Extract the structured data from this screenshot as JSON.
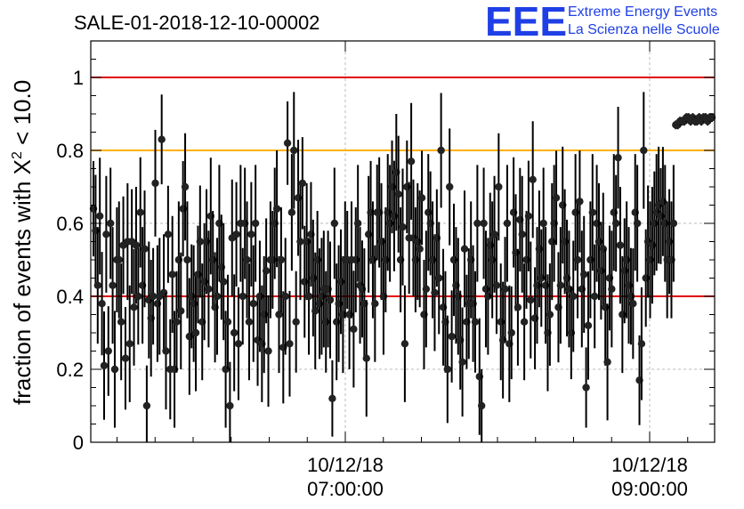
{
  "chart_data": {
    "type": "scatter",
    "title": "SALE-01-2018-12-10-00002",
    "ylabel": "fraction of events with X^2 < 10.0",
    "ylabel_parts": {
      "base": "fraction of events with X",
      "exp": "2",
      "tail": " < 10.0"
    },
    "ylim": [
      0,
      1.1
    ],
    "yticks": [
      "0",
      "0.2",
      "0.4",
      "0.6",
      "0.8",
      "1"
    ],
    "xticks": [
      {
        "line1": "10/12/18",
        "line2": "07:00:00"
      },
      {
        "line1": "10/12/18",
        "line2": "09:00:00"
      }
    ],
    "grid": "dotted at labelled ticks",
    "reference_lines": [
      {
        "y": 1.0,
        "color": "#e00000"
      },
      {
        "y": 0.8,
        "color": "#ffb000"
      },
      {
        "y": 0.4,
        "color": "#e00000"
      }
    ],
    "series": [
      {
        "values": [
          0.64,
          0.58,
          0.43,
          0.62,
          0.38,
          0.21,
          0.57,
          0.25,
          0.6,
          0.43,
          0.2,
          0.5,
          0.5,
          0.33,
          0.54,
          0.23,
          0.55,
          0.27,
          0.55,
          0.37,
          0.54,
          0.4,
          0.63,
          0.43,
          0.53,
          0.1,
          0.39,
          0.34,
          0.4,
          0.71,
          0.38,
          0.4,
          0.83,
          0.41,
          0.25,
          0.57,
          0.2,
          0.46,
          0.2,
          0.33,
          0.5,
          0.36,
          0.64,
          0.7,
          0.5,
          0.29,
          0.4,
          0.38,
          0.3,
          0.46,
          0.55,
          0.33,
          0.44,
          0.55,
          0.42,
          0.62,
          0.5,
          0.37,
          0.4,
          0.6,
          0.48,
          0.44,
          0.2,
          0.33,
          0.1,
          0.56,
          0.3,
          0.57,
          0.27,
          0.6,
          0.4,
          0.6,
          0.5,
          0.33,
          0.57,
          0.38,
          0.6,
          0.28,
          0.4,
          0.27,
          0.35,
          0.47,
          0.25,
          0.5,
          0.5,
          0.6,
          0.64,
          0.35,
          0.5,
          0.26,
          0.4,
          0.82,
          0.27,
          0.63,
          0.8,
          0.33,
          0.67,
          0.55,
          0.71,
          0.44,
          0.55,
          0.4,
          0.57,
          0.45,
          0.36,
          0.5,
          0.38,
          0.4,
          0.42,
          0.33,
          0.42,
          0.39,
          0.12,
          0.6,
          0.33,
          0.38,
          0.44,
          0.35,
          0.5,
          0.5,
          0.35,
          0.5,
          0.31,
          0.5,
          0.6,
          0.43,
          0.42,
          0.38,
          0.23,
          0.57,
          0.63,
          0.5,
          0.38,
          0.63,
          0.63,
          0.55,
          0.4,
          0.5,
          0.63,
          0.6,
          0.7,
          0.62,
          0.74,
          0.68,
          0.5,
          0.59,
          0.27,
          0.7,
          0.56,
          0.77,
          0.56,
          0.5,
          0.55,
          0.53,
          0.67,
          0.35,
          0.42,
          0.63,
          0.6,
          0.5,
          0.41,
          0.56,
          0.45,
          0.8,
          0.37,
          0.33,
          0.2,
          0.7,
          0.29,
          0.5,
          0.43,
          0.4,
          0.28,
          0.22,
          0.53,
          0.33,
          0.38,
          0.5,
          0.38,
          0.33,
          0.6,
          0.18,
          0.1,
          0.6,
          0.42,
          0.4,
          0.54,
          0.5,
          0.57,
          0.43,
          0.7,
          0.33,
          0.28,
          0.42,
          0.6,
          0.27,
          0.3,
          0.63,
          0.52,
          0.37,
          0.61,
          0.57,
          0.33,
          0.5,
          0.62,
          0.39,
          0.72,
          0.34,
          0.43,
          0.53,
          0.45,
          0.6,
          0.43,
          0.3,
          0.35,
          0.55,
          0.6,
          0.67,
          0.37,
          0.43,
          0.65,
          0.55,
          0.45,
          0.42,
          0.3,
          0.4,
          0.63,
          0.5,
          0.66,
          0.42,
          0.46,
          0.15,
          0.32,
          0.5,
          0.63,
          0.4,
          0.6,
          0.55,
          0.47,
          0.53,
          0.37,
          0.22,
          0.45,
          0.42,
          0.63,
          0.6,
          0.78,
          0.54,
          0.35,
          0.47,
          0.5,
          0.43,
          0.4,
          0.38,
          0.63,
          0.6,
          0.17,
          0.27,
          0.8,
          0.45,
          0.55,
          0.5,
          0.54,
          0.6,
          0.63,
          0.65,
          0.62,
          0.66,
          0.6,
          0.5,
          0.55,
          0.5,
          0.6,
          0.87,
          0.87,
          0.88,
          0.88,
          0.88,
          0.89,
          0.89,
          0.88,
          0.89,
          0.88,
          0.88,
          0.89,
          0.88,
          0.89,
          0.89,
          0.88,
          0.89,
          0.89
        ]
      }
    ]
  },
  "logo": {
    "mark": "EEE",
    "line1": "Extreme Energy Events",
    "line2": "La Scienza nelle Scuole"
  }
}
